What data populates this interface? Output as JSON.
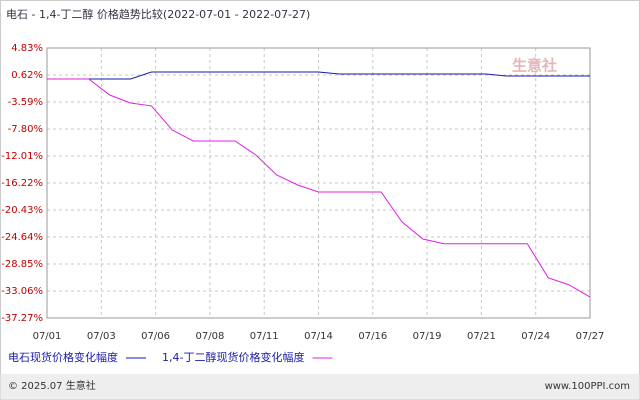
{
  "chart_data": {
    "type": "line",
    "title": "电石 - 1,4-丁二醇 价格趋势比较(2022-07-01 - 2022-07-27)",
    "watermark": "生意社",
    "footer_left": "© 2025.07 生意社",
    "footer_right": "www.100PPI.com",
    "x": [
      "07/01",
      "07/02",
      "07/03",
      "07/04",
      "07/05",
      "07/06",
      "07/07",
      "07/08",
      "07/09",
      "07/10",
      "07/11",
      "07/12",
      "07/13",
      "07/14",
      "07/15",
      "07/16",
      "07/17",
      "07/18",
      "07/19",
      "07/20",
      "07/21",
      "07/22",
      "07/23",
      "07/24",
      "07/25",
      "07/26",
      "07/27"
    ],
    "xticks": [
      {
        "value": 0,
        "label": "07/01"
      },
      {
        "value": 2.6,
        "label": "07/03"
      },
      {
        "value": 5.2,
        "label": "07/06"
      },
      {
        "value": 7.8,
        "label": "07/08"
      },
      {
        "value": 10.4,
        "label": "07/11"
      },
      {
        "value": 13,
        "label": "07/14"
      },
      {
        "value": 15.6,
        "label": "07/16"
      },
      {
        "value": 18.2,
        "label": "07/19"
      },
      {
        "value": 20.8,
        "label": "07/21"
      },
      {
        "value": 23.4,
        "label": "07/24"
      },
      {
        "value": 26,
        "label": "07/27"
      }
    ],
    "ylim": [
      -37.27,
      4.83
    ],
    "yticks": [
      {
        "value": 4.83,
        "label": "4.83%"
      },
      {
        "value": 0.62,
        "label": "0.62%"
      },
      {
        "value": -3.59,
        "label": "-3.59%"
      },
      {
        "value": -7.8,
        "label": "-7.80%"
      },
      {
        "value": -12.01,
        "label": "-12.01%"
      },
      {
        "value": -16.22,
        "label": "-16.22%"
      },
      {
        "value": -20.43,
        "label": "-20.43%"
      },
      {
        "value": -24.64,
        "label": "-24.64%"
      },
      {
        "value": -28.85,
        "label": "-28.85%"
      },
      {
        "value": -33.06,
        "label": "-33.06%"
      },
      {
        "value": -37.27,
        "label": "-37.27%"
      }
    ],
    "grid": true,
    "series": [
      {
        "name": "电石现货价格变化幅度",
        "color": "#1a1aa6",
        "values": [
          0,
          0,
          0,
          0,
          0,
          1.09,
          1.09,
          1.09,
          1.09,
          1.09,
          1.09,
          1.09,
          1.09,
          1.09,
          0.78,
          0.78,
          0.78,
          0.78,
          0.78,
          0.78,
          0.78,
          0.78,
          0.47,
          0.47,
          0.47,
          0.47,
          0.47
        ]
      },
      {
        "name": "1,4-丁二醇现货价格变化幅度",
        "color": "#e020e0",
        "values": [
          0,
          0,
          0,
          -2.5,
          -3.75,
          -4.2,
          -7.96,
          -9.67,
          -9.67,
          -9.67,
          -11.85,
          -14.97,
          -16.53,
          -17.62,
          -17.62,
          -17.62,
          -17.62,
          -22.3,
          -24.95,
          -25.7,
          -25.7,
          -25.7,
          -25.7,
          -25.7,
          -31.0,
          -32.1,
          -34.0
        ]
      }
    ]
  }
}
